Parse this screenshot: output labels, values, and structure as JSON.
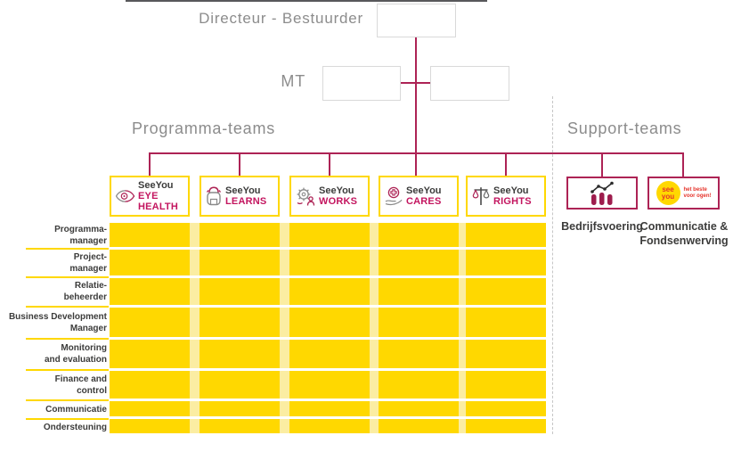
{
  "palette": {
    "yellow": "#FFD800",
    "pale_yellow": "#FBEDA2",
    "connector_crimson": "#AD2355",
    "team_name_magenta": "#C3155F",
    "dark_text": "#3C3C3B",
    "heading_gray": "#8C8C8C",
    "node_border_gray": "#D9D9D9",
    "logo_red": "#E5332A"
  },
  "org": {
    "director_label": "Directeur - Bestuurder",
    "mt_label": "MT"
  },
  "sections": {
    "program_heading": "Programma-teams",
    "support_heading": "Support-teams"
  },
  "teams": [
    {
      "brand": "SeeYou",
      "name": "EYE HEALTH",
      "icon": "eye-icon"
    },
    {
      "brand": "SeeYou",
      "name": "LEARNS",
      "icon": "backpack-icon"
    },
    {
      "brand": "SeeYou",
      "name": "WORKS",
      "icon": "gear-person-icon"
    },
    {
      "brand": "SeeYou",
      "name": "CARES",
      "icon": "care-hand-icon"
    },
    {
      "brand": "SeeYou",
      "name": "RIGHTS",
      "icon": "scales-icon"
    }
  ],
  "support_teams": [
    {
      "label": "Bedrijfsvoering",
      "icon": "bar-chart-icon"
    },
    {
      "label": "Communicatie &\nFondsenwerving",
      "icon": "seeyou-logo",
      "logo": {
        "circle_text": "see\nyou",
        "tagline": "het beste\nvoor ogen!"
      }
    }
  ],
  "grid": {
    "columns": 5,
    "rows": [
      {
        "label": "Programma-\nmanager"
      },
      {
        "label": "Project-\nmanager"
      },
      {
        "label": "Relatie-\nbeheerder"
      },
      {
        "label": "Business Development\nManager"
      },
      {
        "label": "Monitoring\nand evaluation"
      },
      {
        "label": "Finance and\ncontrol"
      },
      {
        "label": "Communicatie"
      },
      {
        "label": "Ondersteuning"
      }
    ]
  }
}
